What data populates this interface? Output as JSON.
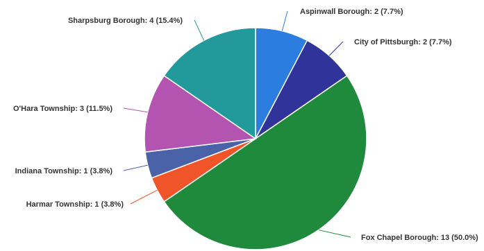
{
  "chart_data": {
    "type": "pie",
    "title": "",
    "start_angle_deg": 0,
    "direction": "clockwise",
    "slices": [
      {
        "label": "Aspinwall Borough",
        "value": 2,
        "percent": "7.7%",
        "display": "Aspinwall Borough: 2 (7.7%)",
        "color": "#2b7de0"
      },
      {
        "label": "City of Pittsburgh",
        "value": 2,
        "percent": "7.7%",
        "display": "City of Pittsburgh: 2 (7.7%)",
        "color": "#30349a"
      },
      {
        "label": "Fox Chapel Borough",
        "value": 13,
        "percent": "50.0%",
        "display": "Fox Chapel Borough: 13 (50.0%)",
        "color": "#1f8a3c"
      },
      {
        "label": "Harmar Township",
        "value": 1,
        "percent": "3.8%",
        "display": "Harmar Township: 1 (3.8%)",
        "color": "#f0552a"
      },
      {
        "label": "Indiana Township",
        "value": 1,
        "percent": "3.8%",
        "display": "Indiana Township: 1 (3.8%)",
        "color": "#4a62a8"
      },
      {
        "label": "O'Hara Township",
        "value": 3,
        "percent": "11.5%",
        "display": "O'Hara Township: 3 (11.5%)",
        "color": "#b254b0"
      },
      {
        "label": "Sharpsburg Borough",
        "value": 4,
        "percent": "15.4%",
        "display": "Sharpsburg Borough: 4 (15.4%)",
        "color": "#22999a"
      }
    ]
  }
}
